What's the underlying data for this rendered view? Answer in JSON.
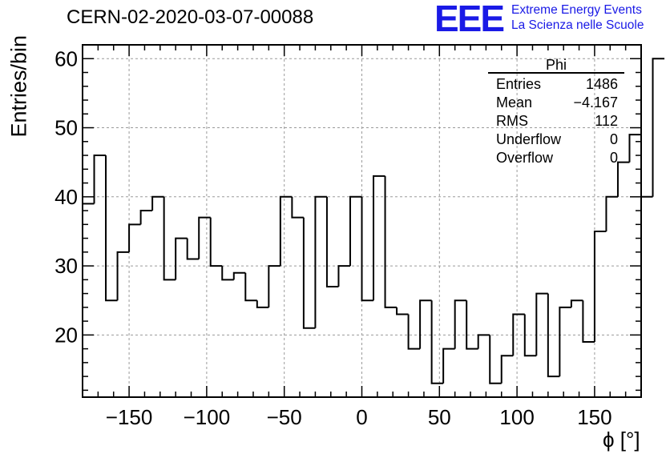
{
  "title": "CERN-02-2020-03-07-00088",
  "logo": {
    "text": "EEE",
    "line1": "Extreme Energy Events",
    "line2": "La Scienza nelle Scuole",
    "color": "#1a1ae6"
  },
  "stats": {
    "name": "Phi",
    "rows": [
      {
        "label": "Entries",
        "value": "1486"
      },
      {
        "label": "Mean",
        "value": "−4.167"
      },
      {
        "label": "RMS",
        "value": "112"
      },
      {
        "label": "Underflow",
        "value": "0"
      },
      {
        "label": "Overflow",
        "value": "0"
      }
    ]
  },
  "chart_data": {
    "type": "histogram",
    "title": "CERN-02-2020-03-07-00088",
    "xlabel": "ϕ [°]",
    "ylabel": "Entries/bin",
    "xlim": [
      -180,
      180
    ],
    "ylim": [
      11,
      62
    ],
    "bin_edges_start": -180,
    "bin_width": 7.5,
    "values": [
      39,
      46,
      25,
      32,
      36,
      38,
      40,
      28,
      34,
      31,
      37,
      30,
      28,
      29,
      25,
      24,
      30,
      40,
      37,
      21,
      40,
      27,
      30,
      40,
      25,
      43,
      24,
      23,
      18,
      25,
      13,
      18,
      25,
      18,
      20,
      13,
      17,
      23,
      17,
      26,
      14,
      24,
      25,
      19,
      35,
      40,
      45,
      49,
      40,
      60
    ],
    "x_ticks": [
      -150,
      -100,
      -50,
      0,
      50,
      100,
      150
    ],
    "y_ticks": [
      20,
      30,
      40,
      50,
      60
    ],
    "grid": true,
    "line_color": "#000000"
  }
}
